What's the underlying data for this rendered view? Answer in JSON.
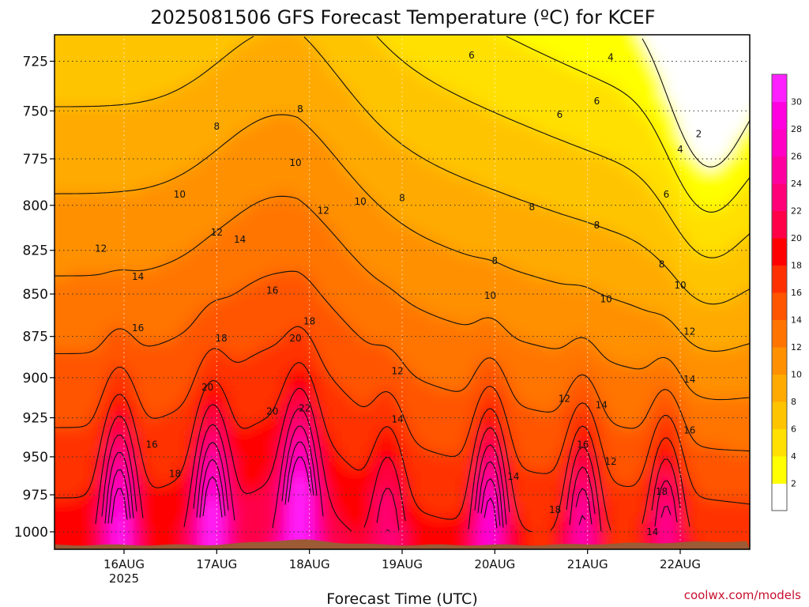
{
  "chart_data": {
    "type": "heatmap",
    "title": "2025081506 GFS Forecast Temperature (ºC) for KCEF",
    "xlabel": "Forecast Time (UTC)",
    "credit": "coolwx.com/models",
    "y_ticks": [
      "725",
      "750",
      "775",
      "800",
      "825",
      "850",
      "875",
      "900",
      "925",
      "950",
      "975",
      "1000"
    ],
    "y_values": [
      725,
      750,
      775,
      800,
      825,
      850,
      875,
      900,
      925,
      950,
      975,
      1000
    ],
    "ylim": [
      1012,
      712
    ],
    "xlim_days": [
      15.25,
      22.75
    ],
    "x_ticks": [
      {
        "day": 16,
        "label": "16AUG",
        "sub": "2025"
      },
      {
        "day": 17,
        "label": "17AUG",
        "sub": ""
      },
      {
        "day": 18,
        "label": "18AUG",
        "sub": ""
      },
      {
        "day": 19,
        "label": "19AUG",
        "sub": ""
      },
      {
        "day": 20,
        "label": "20AUG",
        "sub": ""
      },
      {
        "day": 21,
        "label": "21AUG",
        "sub": ""
      },
      {
        "day": 22,
        "label": "22AUG",
        "sub": ""
      }
    ],
    "colorbar": {
      "levels": [
        2,
        4,
        6,
        8,
        10,
        12,
        14,
        16,
        18,
        20,
        22,
        24,
        26,
        28,
        30
      ],
      "labels": [
        "2",
        "4",
        "6",
        "8",
        "10",
        "12",
        "14",
        "16",
        "18",
        "20",
        "22",
        "24",
        "26",
        "28",
        "30"
      ],
      "colors": [
        "#ffffff",
        "#ffff00",
        "#ffe000",
        "#ffc400",
        "#ffaa00",
        "#ff9000",
        "#ff7400",
        "#ff5400",
        "#ff3000",
        "#ff0000",
        "#ff0048",
        "#ff0078",
        "#ff00a0",
        "#ff00c4",
        "#ff00e0",
        "#ff20ff"
      ]
    },
    "ground_color": "#9c5a35",
    "contour_labels": [
      {
        "day": 19.75,
        "p": 722,
        "text": "6"
      },
      {
        "day": 21.25,
        "p": 723,
        "text": "4"
      },
      {
        "day": 21.1,
        "p": 745,
        "text": "6"
      },
      {
        "day": 20.7,
        "p": 752,
        "text": "6"
      },
      {
        "day": 22.2,
        "p": 762,
        "text": "2"
      },
      {
        "day": 22.0,
        "p": 770,
        "text": "4"
      },
      {
        "day": 17.9,
        "p": 749,
        "text": "8"
      },
      {
        "day": 17.0,
        "p": 758,
        "text": "8"
      },
      {
        "day": 17.85,
        "p": 777,
        "text": "10"
      },
      {
        "day": 16.6,
        "p": 794,
        "text": "10"
      },
      {
        "day": 18.55,
        "p": 798,
        "text": "10"
      },
      {
        "day": 19.0,
        "p": 796,
        "text": "8"
      },
      {
        "day": 20.4,
        "p": 801,
        "text": "8"
      },
      {
        "day": 21.1,
        "p": 811,
        "text": "8"
      },
      {
        "day": 21.85,
        "p": 794,
        "text": "6"
      },
      {
        "day": 17.0,
        "p": 815,
        "text": "12"
      },
      {
        "day": 18.15,
        "p": 803,
        "text": "12"
      },
      {
        "day": 17.25,
        "p": 819,
        "text": "14"
      },
      {
        "day": 15.75,
        "p": 824,
        "text": "12"
      },
      {
        "day": 16.15,
        "p": 840,
        "text": "14"
      },
      {
        "day": 20.0,
        "p": 831,
        "text": "8"
      },
      {
        "day": 21.8,
        "p": 833,
        "text": "8"
      },
      {
        "day": 22.0,
        "p": 845,
        "text": "10"
      },
      {
        "day": 17.6,
        "p": 848,
        "text": "16"
      },
      {
        "day": 19.95,
        "p": 851,
        "text": "10"
      },
      {
        "day": 21.2,
        "p": 853,
        "text": "10"
      },
      {
        "day": 18.0,
        "p": 866,
        "text": "18"
      },
      {
        "day": 16.15,
        "p": 870,
        "text": "16"
      },
      {
        "day": 17.05,
        "p": 876,
        "text": "18"
      },
      {
        "day": 17.85,
        "p": 876,
        "text": "20"
      },
      {
        "day": 22.1,
        "p": 872,
        "text": "12"
      },
      {
        "day": 18.95,
        "p": 896,
        "text": "12"
      },
      {
        "day": 22.1,
        "p": 901,
        "text": "14"
      },
      {
        "day": 16.9,
        "p": 906,
        "text": "20"
      },
      {
        "day": 20.75,
        "p": 913,
        "text": "12"
      },
      {
        "day": 21.15,
        "p": 917,
        "text": "14"
      },
      {
        "day": 17.6,
        "p": 921,
        "text": "20"
      },
      {
        "day": 17.95,
        "p": 919,
        "text": "22"
      },
      {
        "day": 18.95,
        "p": 926,
        "text": "14"
      },
      {
        "day": 22.1,
        "p": 933,
        "text": "16"
      },
      {
        "day": 16.3,
        "p": 942,
        "text": "16"
      },
      {
        "day": 20.95,
        "p": 942,
        "text": "16"
      },
      {
        "day": 21.25,
        "p": 953,
        "text": "12"
      },
      {
        "day": 16.55,
        "p": 961,
        "text": "18"
      },
      {
        "day": 20.2,
        "p": 963,
        "text": "14"
      },
      {
        "day": 21.8,
        "p": 973,
        "text": "18"
      },
      {
        "day": 20.65,
        "p": 985,
        "text": "18"
      },
      {
        "day": 21.7,
        "p": 1000,
        "text": "14"
      }
    ]
  }
}
